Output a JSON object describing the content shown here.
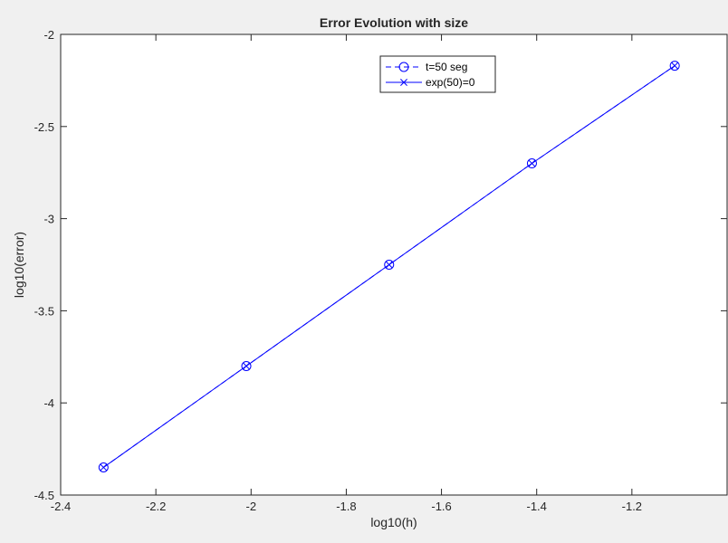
{
  "chart_data": {
    "type": "line",
    "title": "Error Evolution with size",
    "xlabel": "log10(h)",
    "ylabel": "log10(error)",
    "xlim": [
      -2.4,
      -1.0
    ],
    "ylim": [
      -4.5,
      -2.0
    ],
    "xticks": [
      -2.4,
      -2.2,
      -2.0,
      -1.8,
      -1.6,
      -1.4,
      -1.2
    ],
    "xtick_labels": [
      "-2.4",
      "-2.2",
      "-2",
      "-1.8",
      "-1.6",
      "-1.4",
      "-1.2"
    ],
    "yticks": [
      -4.5,
      -4.0,
      -3.5,
      -3.0,
      -2.5,
      -2.0
    ],
    "ytick_labels": [
      "-4.5",
      "-4",
      "-3.5",
      "-3",
      "-2.5",
      "-2"
    ],
    "grid": false,
    "legend_position": "top-center",
    "series": [
      {
        "name": "t=50 seg",
        "color": "#0000ff",
        "line_style": "dashed",
        "marker": "circle",
        "x": [
          -2.31,
          -2.01,
          -1.71,
          -1.41,
          -1.11
        ],
        "y": [
          -4.35,
          -3.8,
          -3.25,
          -2.7,
          -2.17
        ]
      },
      {
        "name": "exp(50)=0",
        "color": "#0000ff",
        "line_style": "solid",
        "marker": "x",
        "x": [
          -2.31,
          -2.01,
          -1.71,
          -1.41,
          -1.11
        ],
        "y": [
          -4.35,
          -3.8,
          -3.25,
          -2.7,
          -2.17
        ]
      }
    ]
  }
}
